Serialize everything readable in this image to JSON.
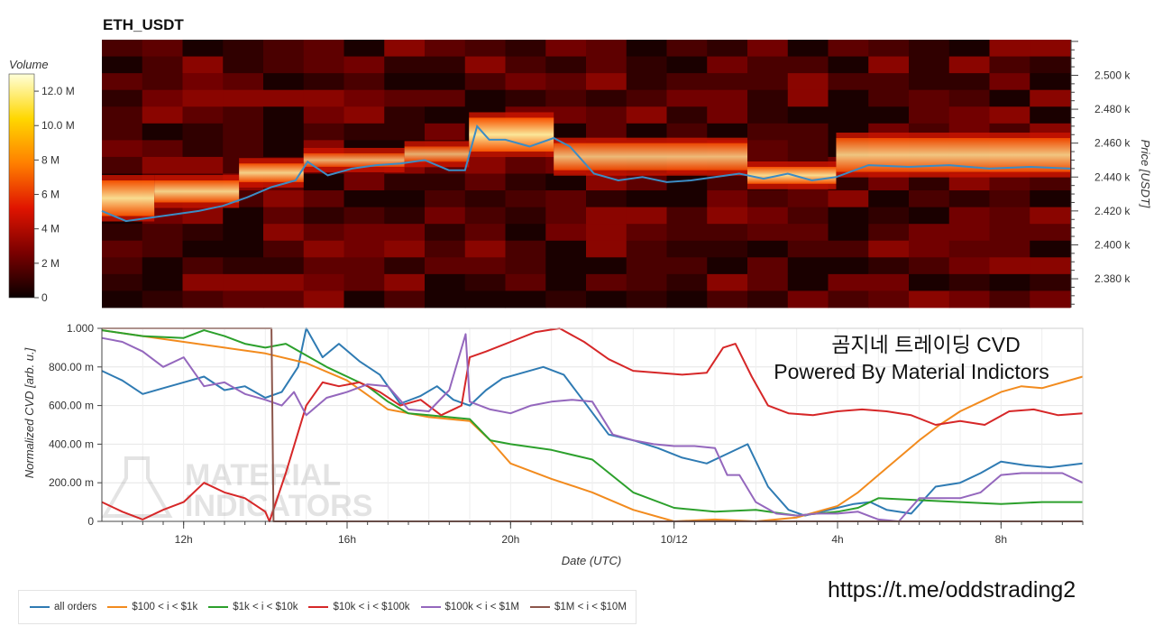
{
  "chart_data": [
    {
      "type": "heatmap",
      "title": "ETH_USDT",
      "colorbar": {
        "title": "Volume",
        "range": [
          0,
          13000000
        ],
        "ticks": [
          {
            "value": 0,
            "label": "0"
          },
          {
            "value": 2000000,
            "label": "2 M"
          },
          {
            "value": 4000000,
            "label": "4 M"
          },
          {
            "value": 6000000,
            "label": "6 M"
          },
          {
            "value": 8000000,
            "label": "8 M"
          },
          {
            "value": 10000000,
            "label": "10.0 M"
          },
          {
            "value": 12000000,
            "label": "12.0 M"
          }
        ],
        "colorscale": [
          "#0b0000",
          "#7a0000",
          "#e01400",
          "#ff7f00",
          "#ffd700",
          "#ffffd9"
        ]
      },
      "ylabel": "Price [USDT]",
      "yaxis_side": "right",
      "ylim": [
        2363,
        2521
      ],
      "yticks": [
        {
          "value": 2380,
          "label": "2.380 k"
        },
        {
          "value": 2400,
          "label": "2.400 k"
        },
        {
          "value": 2420,
          "label": "2.420 k"
        },
        {
          "value": 2440,
          "label": "2.440 k"
        },
        {
          "value": 2460,
          "label": "2.460 k"
        },
        {
          "value": 2480,
          "label": "2.480 k"
        },
        {
          "value": 2500,
          "label": "2.500 k"
        }
      ],
      "xlim": [
        10.0,
        34.0
      ],
      "hot_bands": [
        {
          "x": [
            10.0,
            11.3
          ],
          "price": [
            2417,
            2438
          ],
          "level": 0.9
        },
        {
          "x": [
            11.3,
            13.4
          ],
          "price": [
            2425,
            2438
          ],
          "level": 0.85
        },
        {
          "x": [
            13.4,
            15.0
          ],
          "price": [
            2437,
            2448
          ],
          "level": 0.85
        },
        {
          "x": [
            15.0,
            17.5
          ],
          "price": [
            2446,
            2454
          ],
          "level": 0.7
        },
        {
          "x": [
            17.5,
            19.1
          ],
          "price": [
            2449,
            2458
          ],
          "level": 0.7
        },
        {
          "x": [
            19.1,
            21.2
          ],
          "price": [
            2455,
            2475
          ],
          "level": 0.95
        },
        {
          "x": [
            21.2,
            26.0
          ],
          "price": [
            2444,
            2460
          ],
          "level": 0.75
        },
        {
          "x": [
            26.0,
            28.2
          ],
          "price": [
            2436,
            2446
          ],
          "level": 0.9
        },
        {
          "x": [
            28.2,
            34.0
          ],
          "price": [
            2443,
            2463
          ],
          "level": 0.8
        }
      ],
      "series": [
        {
          "type": "line",
          "color": "#3c8cc4",
          "x": [
            10.0,
            10.6,
            11.2,
            11.8,
            12.4,
            13.0,
            13.6,
            14.2,
            14.8,
            15.1,
            15.6,
            16.2,
            16.8,
            17.4,
            18.0,
            18.6,
            19.0,
            19.3,
            19.6,
            20.0,
            20.6,
            21.2,
            21.6,
            22.2,
            22.8,
            23.4,
            24.0,
            24.6,
            25.2,
            25.8,
            26.4,
            27.0,
            27.6,
            28.2,
            29.0,
            30.0,
            31.0,
            32.0,
            33.0,
            34.0
          ],
          "y": [
            2420,
            2414,
            2416,
            2418,
            2420,
            2423,
            2428,
            2434,
            2438,
            2449,
            2441,
            2445,
            2447,
            2448,
            2450,
            2444,
            2444,
            2470,
            2462,
            2462,
            2458,
            2463,
            2458,
            2442,
            2438,
            2440,
            2437,
            2438,
            2440,
            2442,
            2439,
            2442,
            2438,
            2440,
            2447,
            2446,
            2447,
            2445,
            2446,
            2445
          ]
        }
      ]
    },
    {
      "type": "line",
      "ylabel": "Normalized CVD [arb. u.]",
      "xlabel": "Date (UTC)",
      "xlim": [
        10.0,
        34.0
      ],
      "ylim": [
        0,
        1.0
      ],
      "xticks": [
        {
          "value": 12,
          "label": "12h"
        },
        {
          "value": 16,
          "label": "16h"
        },
        {
          "value": 20,
          "label": "20h"
        },
        {
          "value": 24,
          "label": "10/12"
        },
        {
          "value": 28,
          "label": "4h"
        },
        {
          "value": 32,
          "label": "8h"
        }
      ],
      "yticks": [
        {
          "value": 0,
          "label": "0"
        },
        {
          "value": 0.2,
          "label": "200.00 m"
        },
        {
          "value": 0.4,
          "label": "400.00 m"
        },
        {
          "value": 0.6,
          "label": "600.00 m"
        },
        {
          "value": 0.8,
          "label": "800.00 m"
        },
        {
          "value": 1.0,
          "label": "1.000"
        }
      ],
      "grid": true,
      "series": [
        {
          "name": "all orders",
          "color": "#2f7bb3",
          "x": [
            10.0,
            10.5,
            11.0,
            11.5,
            12.0,
            12.5,
            13.0,
            13.5,
            14.0,
            14.4,
            14.8,
            15.0,
            15.4,
            15.8,
            16.3,
            16.8,
            17.3,
            17.8,
            18.2,
            18.6,
            19.0,
            19.4,
            19.8,
            20.3,
            20.8,
            21.3,
            21.8,
            22.4,
            23.0,
            23.6,
            24.2,
            24.8,
            25.3,
            25.8,
            26.3,
            26.8,
            27.2,
            27.6,
            28.0,
            28.4,
            28.8,
            29.2,
            29.8,
            30.4,
            31.0,
            31.5,
            32.0,
            32.6,
            33.2,
            34.0
          ],
          "y": [
            0.78,
            0.73,
            0.66,
            0.69,
            0.72,
            0.75,
            0.68,
            0.7,
            0.64,
            0.67,
            0.8,
            1.0,
            0.85,
            0.92,
            0.83,
            0.76,
            0.61,
            0.65,
            0.7,
            0.63,
            0.6,
            0.68,
            0.74,
            0.77,
            0.8,
            0.76,
            0.62,
            0.45,
            0.42,
            0.38,
            0.33,
            0.3,
            0.35,
            0.4,
            0.18,
            0.06,
            0.03,
            0.05,
            0.07,
            0.09,
            0.1,
            0.06,
            0.04,
            0.18,
            0.2,
            0.25,
            0.31,
            0.29,
            0.28,
            0.3
          ]
        },
        {
          "name": "$100 < i < $1k",
          "color": "#f28b1e",
          "x": [
            10.0,
            11.0,
            12.0,
            13.0,
            14.0,
            15.0,
            16.0,
            17.0,
            18.0,
            19.0,
            19.5,
            20.0,
            21.0,
            22.0,
            23.0,
            24.0,
            25.0,
            26.0,
            27.0,
            28.0,
            28.5,
            29.0,
            29.5,
            30.0,
            30.5,
            31.0,
            31.5,
            32.0,
            32.5,
            33.0,
            34.0
          ],
          "y": [
            0.99,
            0.96,
            0.93,
            0.9,
            0.87,
            0.82,
            0.73,
            0.58,
            0.54,
            0.52,
            0.42,
            0.3,
            0.22,
            0.15,
            0.06,
            0.0,
            0.01,
            0.0,
            0.02,
            0.08,
            0.15,
            0.24,
            0.33,
            0.42,
            0.5,
            0.57,
            0.62,
            0.67,
            0.7,
            0.69,
            0.75
          ]
        },
        {
          "name": "$1k < i < $10k",
          "color": "#2ca02c",
          "x": [
            10.0,
            11.0,
            12.0,
            12.5,
            13.0,
            13.5,
            14.0,
            14.5,
            15.0,
            15.5,
            16.0,
            16.5,
            17.0,
            17.5,
            18.0,
            19.0,
            19.5,
            20.0,
            21.0,
            22.0,
            23.0,
            24.0,
            25.0,
            26.0,
            27.0,
            28.0,
            28.5,
            29.0,
            30.0,
            31.0,
            32.0,
            33.0,
            34.0
          ],
          "y": [
            0.99,
            0.96,
            0.95,
            0.99,
            0.96,
            0.92,
            0.9,
            0.92,
            0.86,
            0.8,
            0.75,
            0.7,
            0.62,
            0.56,
            0.55,
            0.53,
            0.42,
            0.4,
            0.37,
            0.32,
            0.15,
            0.07,
            0.05,
            0.06,
            0.03,
            0.05,
            0.07,
            0.12,
            0.11,
            0.1,
            0.09,
            0.1,
            0.1
          ]
        },
        {
          "name": "$10k < i < $100k",
          "color": "#d62728",
          "x": [
            10.0,
            10.5,
            11.0,
            11.5,
            12.0,
            12.5,
            13.0,
            13.5,
            14.0,
            14.1,
            14.5,
            15.0,
            15.4,
            15.8,
            16.3,
            16.8,
            17.3,
            17.8,
            18.3,
            18.8,
            19.0,
            19.4,
            20.0,
            20.6,
            21.2,
            21.8,
            22.4,
            23.0,
            23.6,
            24.2,
            24.8,
            25.2,
            25.5,
            25.9,
            26.3,
            26.8,
            27.4,
            28.0,
            28.6,
            29.2,
            29.8,
            30.4,
            31.0,
            31.6,
            32.2,
            32.8,
            33.4,
            34.0
          ],
          "y": [
            0.1,
            0.05,
            0.01,
            0.06,
            0.1,
            0.2,
            0.15,
            0.12,
            0.05,
            0.0,
            0.25,
            0.6,
            0.72,
            0.7,
            0.72,
            0.67,
            0.6,
            0.63,
            0.55,
            0.6,
            0.85,
            0.88,
            0.93,
            0.98,
            1.0,
            0.93,
            0.84,
            0.78,
            0.77,
            0.76,
            0.77,
            0.9,
            0.92,
            0.75,
            0.6,
            0.56,
            0.55,
            0.57,
            0.58,
            0.57,
            0.55,
            0.5,
            0.52,
            0.5,
            0.57,
            0.58,
            0.55,
            0.56
          ]
        },
        {
          "name": "$100k < i < $1M",
          "color": "#9467bd",
          "x": [
            10.0,
            10.5,
            11.0,
            11.5,
            12.0,
            12.5,
            13.0,
            13.5,
            14.0,
            14.4,
            14.7,
            15.0,
            15.5,
            16.0,
            16.5,
            17.0,
            17.5,
            18.0,
            18.5,
            18.9,
            19.0,
            19.5,
            20.0,
            20.5,
            21.0,
            21.5,
            22.0,
            22.5,
            23.0,
            23.5,
            24.0,
            24.5,
            25.0,
            25.3,
            25.6,
            26.0,
            26.5,
            27.0,
            27.5,
            28.0,
            28.5,
            29.0,
            29.5,
            30.0,
            30.5,
            31.0,
            31.5,
            32.0,
            32.5,
            33.0,
            33.5,
            34.0
          ],
          "y": [
            0.95,
            0.93,
            0.88,
            0.8,
            0.85,
            0.7,
            0.72,
            0.66,
            0.63,
            0.6,
            0.67,
            0.55,
            0.64,
            0.67,
            0.71,
            0.7,
            0.58,
            0.57,
            0.68,
            0.97,
            0.62,
            0.58,
            0.56,
            0.6,
            0.62,
            0.63,
            0.62,
            0.45,
            0.42,
            0.4,
            0.39,
            0.39,
            0.38,
            0.24,
            0.24,
            0.1,
            0.04,
            0.03,
            0.04,
            0.04,
            0.05,
            0.01,
            0.0,
            0.12,
            0.12,
            0.12,
            0.15,
            0.24,
            0.25,
            0.25,
            0.25,
            0.2
          ]
        },
        {
          "name": "$1M < i < $10M",
          "color": "#8c564b",
          "x": [
            10.0,
            14.15,
            14.2,
            34.0
          ],
          "y": [
            1.0,
            1.0,
            0.0,
            0.0
          ]
        }
      ]
    }
  ],
  "overlay": {
    "line1": "곰지네 트레이딩 CVD",
    "line2": "Powered By Material Indictors",
    "link": "https://t.me/oddstrading2",
    "watermark_line1": "MATERIAL",
    "watermark_line2": "INDICATORS"
  }
}
